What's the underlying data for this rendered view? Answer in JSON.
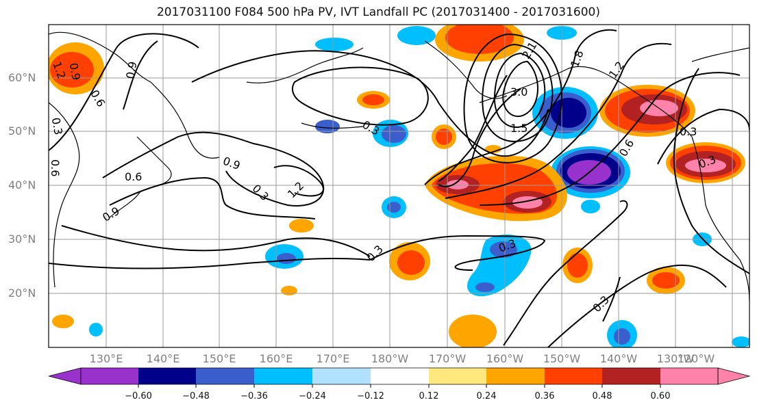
{
  "title": "2017031100 F084 500 hPa PV, IVT Landfall PC (2017031400 - 2017031600)",
  "lat_labels": [
    "60°N",
    "50°N",
    "40°N",
    "30°N",
    "20°N"
  ],
  "lon_labels": [
    "130°E",
    "140°E",
    "150°E",
    "160°E",
    "170°E",
    "180°W",
    "170°W",
    "160°W",
    "150°W",
    "140°W",
    "130°W",
    "120°W"
  ],
  "colorbar": {
    "ticks": [
      "−0.60",
      "−0.48",
      "−0.36",
      "−0.24",
      "−0.12",
      "0.12",
      "0.24",
      "0.36",
      "0.48",
      "0.60"
    ],
    "colors": [
      "#9932cc",
      "#00008b",
      "#3a5fcd",
      "#00bfff",
      "#b0e2ff",
      "#ffffff",
      "#ffe97f",
      "#ffa500",
      "#ff4000",
      "#b22222",
      "#ff82ab"
    ]
  },
  "contour_labels": [
    "0.9",
    "1.2",
    "0.6",
    "0.9",
    "1.2",
    "0.3",
    "0.9",
    "0.6",
    "0.3",
    "0.3",
    "2.1",
    "1.8",
    "1.2",
    "1.5",
    "3.0",
    "0.6",
    "0.3",
    "0.3",
    "0.3",
    "0.3",
    "0.3",
    "0.9",
    "0.6"
  ]
}
